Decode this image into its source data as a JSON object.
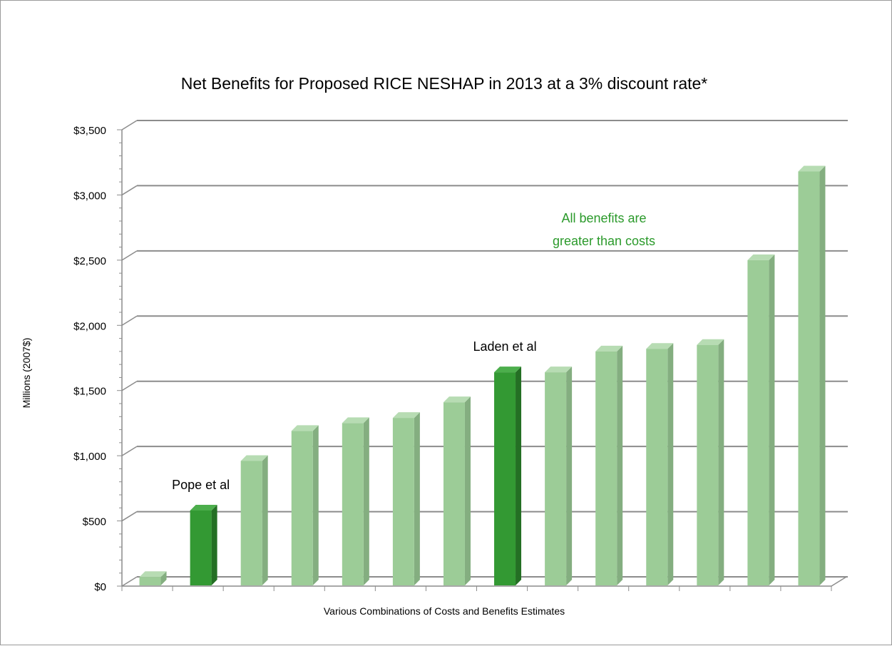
{
  "chart_data": {
    "type": "bar",
    "title": "Net Benefits for Proposed RICE NESHAP in 2013 at a 3% discount rate*",
    "xlabel": "Various Combinations of Costs and Benefits Estimates",
    "ylabel": "Millions (2007$)",
    "ylim": [
      0,
      3500
    ],
    "yticks": [
      "$0",
      "$500",
      "$1,000",
      "$1,500",
      "$2,000",
      "$2,500",
      "$3,000",
      "$3,500"
    ],
    "ytick_values": [
      0,
      500,
      1000,
      1500,
      2000,
      2500,
      3000,
      3500
    ],
    "values": [
      70,
      580,
      960,
      1190,
      1250,
      1290,
      1410,
      1640,
      1640,
      1800,
      1820,
      1850,
      2500,
      3180
    ],
    "highlight_indices": [
      1,
      7
    ],
    "grid": true,
    "annotations": [
      {
        "text": "Pope et al",
        "bar_index": 1
      },
      {
        "text": "Laden et al",
        "bar_index": 7
      }
    ],
    "note_lines": [
      "All benefits are",
      "greater than costs"
    ]
  },
  "colors": {
    "bar": "#9ccc97",
    "bar_side": "#84ae80",
    "bar_top": "#b7dcb3",
    "highlight": "#339933",
    "highlight_side": "#246f24",
    "highlight_top": "#4cae4c",
    "note": "#2b9a2b",
    "grid": "#8c8c8c"
  }
}
